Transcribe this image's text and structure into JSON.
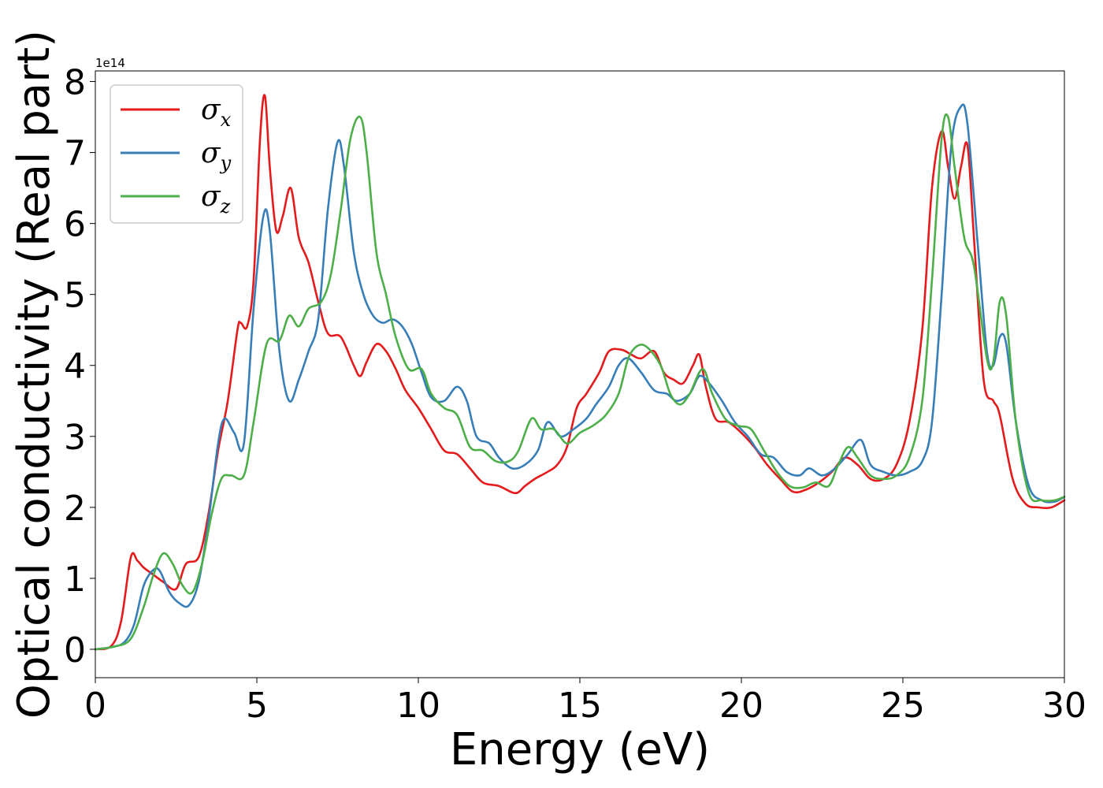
{
  "chart_data": {
    "type": "line",
    "xlabel": "Energy (eV)",
    "ylabel": "Optical conductivity (Real part)",
    "y_offset_label": "1e14",
    "xlim": [
      0,
      30
    ],
    "ylim": [
      -0.4,
      8.15
    ],
    "xticks": [
      0,
      5,
      10,
      15,
      20,
      25,
      30
    ],
    "yticks": [
      0,
      1,
      2,
      3,
      4,
      5,
      6,
      7,
      8
    ],
    "grid": false,
    "legend_position": "top-left",
    "series": [
      {
        "name": "σx",
        "legend_base": "σ",
        "legend_sub": "x",
        "color": "#e41a1c",
        "points": [
          [
            0,
            0
          ],
          [
            0.5,
            0.05
          ],
          [
            0.8,
            0.4
          ],
          [
            1.1,
            1.3
          ],
          [
            1.3,
            1.25
          ],
          [
            1.5,
            1.15
          ],
          [
            1.8,
            1.05
          ],
          [
            2.1,
            0.95
          ],
          [
            2.5,
            0.85
          ],
          [
            2.8,
            1.2
          ],
          [
            3.2,
            1.3
          ],
          [
            3.5,
            1.9
          ],
          [
            3.8,
            2.8
          ],
          [
            4.1,
            3.5
          ],
          [
            4.4,
            4.5
          ],
          [
            4.5,
            4.6
          ],
          [
            4.7,
            4.55
          ],
          [
            4.9,
            5.2
          ],
          [
            5.1,
            7.2
          ],
          [
            5.25,
            7.8
          ],
          [
            5.4,
            6.8
          ],
          [
            5.6,
            5.9
          ],
          [
            5.8,
            6.1
          ],
          [
            6.05,
            6.5
          ],
          [
            6.3,
            5.8
          ],
          [
            6.6,
            5.45
          ],
          [
            6.9,
            4.9
          ],
          [
            7.2,
            4.45
          ],
          [
            7.6,
            4.4
          ],
          [
            8.0,
            4.0
          ],
          [
            8.2,
            3.85
          ],
          [
            8.4,
            4.05
          ],
          [
            8.7,
            4.3
          ],
          [
            9.0,
            4.2
          ],
          [
            9.3,
            3.95
          ],
          [
            9.6,
            3.65
          ],
          [
            10.0,
            3.4
          ],
          [
            10.4,
            3.1
          ],
          [
            10.8,
            2.8
          ],
          [
            11.2,
            2.75
          ],
          [
            11.6,
            2.55
          ],
          [
            12.0,
            2.35
          ],
          [
            12.5,
            2.3
          ],
          [
            13.0,
            2.2
          ],
          [
            13.3,
            2.3
          ],
          [
            13.6,
            2.4
          ],
          [
            14.0,
            2.5
          ],
          [
            14.3,
            2.6
          ],
          [
            14.6,
            2.85
          ],
          [
            14.9,
            3.4
          ],
          [
            15.2,
            3.6
          ],
          [
            15.6,
            3.9
          ],
          [
            15.9,
            4.2
          ],
          [
            16.3,
            4.22
          ],
          [
            16.6,
            4.15
          ],
          [
            16.9,
            4.1
          ],
          [
            17.3,
            4.2
          ],
          [
            17.6,
            3.9
          ],
          [
            17.9,
            3.8
          ],
          [
            18.2,
            3.75
          ],
          [
            18.5,
            4.0
          ],
          [
            18.7,
            4.15
          ],
          [
            18.9,
            3.7
          ],
          [
            19.2,
            3.25
          ],
          [
            19.6,
            3.2
          ],
          [
            20.0,
            3.05
          ],
          [
            20.4,
            2.85
          ],
          [
            20.8,
            2.6
          ],
          [
            21.2,
            2.4
          ],
          [
            21.6,
            2.22
          ],
          [
            22.0,
            2.25
          ],
          [
            22.4,
            2.35
          ],
          [
            22.8,
            2.5
          ],
          [
            23.2,
            2.7
          ],
          [
            23.6,
            2.6
          ],
          [
            24.0,
            2.4
          ],
          [
            24.4,
            2.4
          ],
          [
            24.8,
            2.6
          ],
          [
            25.2,
            3.2
          ],
          [
            25.6,
            4.5
          ],
          [
            25.9,
            6.5
          ],
          [
            26.2,
            7.3
          ],
          [
            26.4,
            6.8
          ],
          [
            26.6,
            6.35
          ],
          [
            26.8,
            6.8
          ],
          [
            27.0,
            7.1
          ],
          [
            27.2,
            5.8
          ],
          [
            27.5,
            3.8
          ],
          [
            27.8,
            3.5
          ],
          [
            28.0,
            3.3
          ],
          [
            28.4,
            2.4
          ],
          [
            28.8,
            2.05
          ],
          [
            29.2,
            2.0
          ],
          [
            29.6,
            2.0
          ],
          [
            30.0,
            2.1
          ]
        ]
      },
      {
        "name": "σy",
        "legend_base": "σ",
        "legend_sub": "y",
        "color": "#377eb8",
        "points": [
          [
            0,
            0
          ],
          [
            0.5,
            0.03
          ],
          [
            0.9,
            0.1
          ],
          [
            1.2,
            0.35
          ],
          [
            1.5,
            0.9
          ],
          [
            1.8,
            1.12
          ],
          [
            2.0,
            1.1
          ],
          [
            2.3,
            0.8
          ],
          [
            2.6,
            0.65
          ],
          [
            2.9,
            0.62
          ],
          [
            3.2,
            0.95
          ],
          [
            3.5,
            1.8
          ],
          [
            3.8,
            2.9
          ],
          [
            4.0,
            3.25
          ],
          [
            4.3,
            3.05
          ],
          [
            4.6,
            2.9
          ],
          [
            4.9,
            4.8
          ],
          [
            5.2,
            6.1
          ],
          [
            5.4,
            5.9
          ],
          [
            5.7,
            4.2
          ],
          [
            6.0,
            3.5
          ],
          [
            6.3,
            3.8
          ],
          [
            6.6,
            4.2
          ],
          [
            6.9,
            4.65
          ],
          [
            7.2,
            6.2
          ],
          [
            7.5,
            7.15
          ],
          [
            7.7,
            6.8
          ],
          [
            8.0,
            5.6
          ],
          [
            8.3,
            5.0
          ],
          [
            8.6,
            4.7
          ],
          [
            8.9,
            4.6
          ],
          [
            9.2,
            4.65
          ],
          [
            9.5,
            4.55
          ],
          [
            9.8,
            4.3
          ],
          [
            10.1,
            3.9
          ],
          [
            10.4,
            3.55
          ],
          [
            10.8,
            3.5
          ],
          [
            11.2,
            3.7
          ],
          [
            11.5,
            3.5
          ],
          [
            11.8,
            3.0
          ],
          [
            12.2,
            2.9
          ],
          [
            12.5,
            2.7
          ],
          [
            12.9,
            2.55
          ],
          [
            13.3,
            2.6
          ],
          [
            13.7,
            2.8
          ],
          [
            14.0,
            3.2
          ],
          [
            14.4,
            3.0
          ],
          [
            14.8,
            3.1
          ],
          [
            15.2,
            3.25
          ],
          [
            15.5,
            3.45
          ],
          [
            15.9,
            3.7
          ],
          [
            16.2,
            4.0
          ],
          [
            16.5,
            4.1
          ],
          [
            16.9,
            3.9
          ],
          [
            17.3,
            3.65
          ],
          [
            17.7,
            3.6
          ],
          [
            18.0,
            3.5
          ],
          [
            18.4,
            3.6
          ],
          [
            18.7,
            3.85
          ],
          [
            19.0,
            3.75
          ],
          [
            19.4,
            3.5
          ],
          [
            19.8,
            3.2
          ],
          [
            20.2,
            3.0
          ],
          [
            20.6,
            2.75
          ],
          [
            21.0,
            2.7
          ],
          [
            21.4,
            2.5
          ],
          [
            21.8,
            2.45
          ],
          [
            22.1,
            2.55
          ],
          [
            22.5,
            2.45
          ],
          [
            22.9,
            2.55
          ],
          [
            23.3,
            2.75
          ],
          [
            23.7,
            2.95
          ],
          [
            24.0,
            2.6
          ],
          [
            24.4,
            2.5
          ],
          [
            24.8,
            2.45
          ],
          [
            25.2,
            2.5
          ],
          [
            25.6,
            2.65
          ],
          [
            25.9,
            3.2
          ],
          [
            26.2,
            5.0
          ],
          [
            26.5,
            7.1
          ],
          [
            26.8,
            7.65
          ],
          [
            27.0,
            7.4
          ],
          [
            27.3,
            5.8
          ],
          [
            27.6,
            4.2
          ],
          [
            27.8,
            4.0
          ],
          [
            28.0,
            4.4
          ],
          [
            28.2,
            4.3
          ],
          [
            28.5,
            3.2
          ],
          [
            28.9,
            2.3
          ],
          [
            29.3,
            2.1
          ],
          [
            29.7,
            2.08
          ],
          [
            30.0,
            2.15
          ]
        ]
      },
      {
        "name": "σz",
        "legend_base": "σ",
        "legend_sub": "z",
        "color": "#4daf4a",
        "points": [
          [
            0,
            0
          ],
          [
            0.6,
            0.04
          ],
          [
            1.1,
            0.15
          ],
          [
            1.5,
            0.6
          ],
          [
            1.8,
            1.05
          ],
          [
            2.1,
            1.35
          ],
          [
            2.4,
            1.2
          ],
          [
            2.7,
            0.9
          ],
          [
            3.0,
            0.8
          ],
          [
            3.3,
            1.2
          ],
          [
            3.6,
            1.9
          ],
          [
            3.9,
            2.4
          ],
          [
            4.2,
            2.45
          ],
          [
            4.6,
            2.45
          ],
          [
            4.9,
            3.2
          ],
          [
            5.3,
            4.3
          ],
          [
            5.7,
            4.35
          ],
          [
            6.0,
            4.7
          ],
          [
            6.3,
            4.55
          ],
          [
            6.6,
            4.8
          ],
          [
            7.0,
            4.9
          ],
          [
            7.3,
            5.3
          ],
          [
            7.6,
            6.2
          ],
          [
            7.9,
            7.2
          ],
          [
            8.2,
            7.5
          ],
          [
            8.4,
            7.0
          ],
          [
            8.7,
            5.6
          ],
          [
            9.0,
            5.0
          ],
          [
            9.3,
            4.4
          ],
          [
            9.7,
            3.95
          ],
          [
            10.1,
            3.95
          ],
          [
            10.4,
            3.6
          ],
          [
            10.8,
            3.4
          ],
          [
            11.2,
            3.3
          ],
          [
            11.6,
            2.85
          ],
          [
            12.0,
            2.8
          ],
          [
            12.4,
            2.65
          ],
          [
            12.8,
            2.65
          ],
          [
            13.1,
            2.8
          ],
          [
            13.5,
            3.25
          ],
          [
            13.8,
            3.1
          ],
          [
            14.2,
            3.1
          ],
          [
            14.6,
            2.9
          ],
          [
            15.0,
            3.05
          ],
          [
            15.4,
            3.15
          ],
          [
            15.8,
            3.3
          ],
          [
            16.2,
            3.6
          ],
          [
            16.5,
            4.1
          ],
          [
            16.8,
            4.28
          ],
          [
            17.1,
            4.25
          ],
          [
            17.5,
            4.0
          ],
          [
            17.8,
            3.6
          ],
          [
            18.1,
            3.45
          ],
          [
            18.4,
            3.6
          ],
          [
            18.8,
            3.95
          ],
          [
            19.1,
            3.6
          ],
          [
            19.5,
            3.25
          ],
          [
            19.9,
            3.15
          ],
          [
            20.3,
            3.1
          ],
          [
            20.7,
            2.8
          ],
          [
            21.1,
            2.5
          ],
          [
            21.5,
            2.3
          ],
          [
            21.9,
            2.28
          ],
          [
            22.3,
            2.35
          ],
          [
            22.7,
            2.3
          ],
          [
            23.0,
            2.6
          ],
          [
            23.3,
            2.85
          ],
          [
            23.6,
            2.7
          ],
          [
            24.0,
            2.45
          ],
          [
            24.4,
            2.4
          ],
          [
            24.8,
            2.45
          ],
          [
            25.2,
            2.7
          ],
          [
            25.6,
            3.5
          ],
          [
            25.9,
            5.2
          ],
          [
            26.2,
            7.2
          ],
          [
            26.4,
            7.5
          ],
          [
            26.6,
            6.8
          ],
          [
            26.9,
            5.8
          ],
          [
            27.2,
            5.4
          ],
          [
            27.6,
            4.1
          ],
          [
            27.8,
            4.05
          ],
          [
            28.0,
            4.9
          ],
          [
            28.2,
            4.7
          ],
          [
            28.5,
            3.2
          ],
          [
            28.9,
            2.2
          ],
          [
            29.3,
            2.1
          ],
          [
            29.7,
            2.1
          ],
          [
            30.0,
            2.15
          ]
        ]
      }
    ]
  }
}
